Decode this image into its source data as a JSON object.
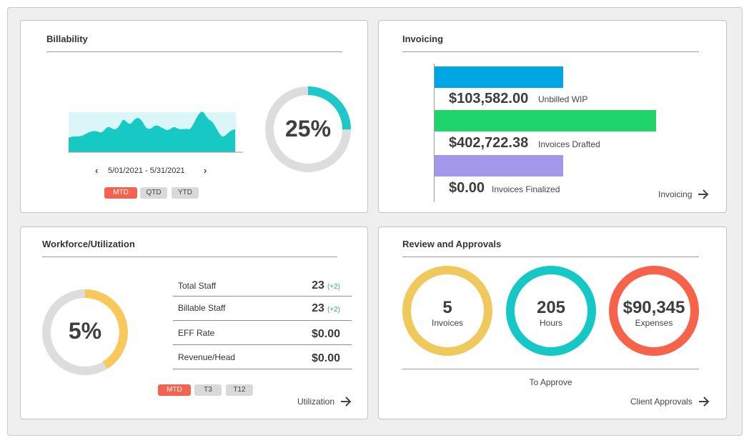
{
  "billability": {
    "title": "Billability",
    "percent": "25%",
    "percent_value": 25,
    "date_range": "5/01/2021 - 5/31/2021",
    "prev_icon": "chevron-left-icon",
    "next_icon": "chevron-right-icon",
    "periods": [
      "MTD",
      "QTD",
      "YTD"
    ],
    "active_period": "MTD",
    "ring_color": "#1ec8c8",
    "ring_track_color": "#dddddd",
    "area_fill": "#17c9c4",
    "area_bg": "#daf6f8"
  },
  "invoicing": {
    "title": "Invoicing",
    "items": [
      {
        "amount": "$103,582.00",
        "label": "Unbilled WIP",
        "value": 103582.0,
        "color": "#00a6e4"
      },
      {
        "amount": "$402,722.38",
        "label": "Invoices Drafted",
        "value": 402722.38,
        "color": "#1fd46b"
      },
      {
        "amount": "$0.00",
        "label": "Invoices Finalized",
        "value": 0.0,
        "color": "#a498ed"
      }
    ],
    "link_label": "Invoicing",
    "link_icon": "arrow-right-icon"
  },
  "workforce": {
    "title": "Workforce/Utilization",
    "percent": "5%",
    "ring_color": "#f8c95a",
    "ring_track_color": "#dddddd",
    "stats": [
      {
        "label": "Total Staff",
        "value": "23",
        "delta": "(+2)"
      },
      {
        "label": "Billable Staff",
        "value": "23",
        "delta": "(+2)"
      },
      {
        "label": "EFF Rate",
        "value": "$0.00",
        "delta": ""
      },
      {
        "label": "Revenue/Head",
        "value": "$0.00",
        "delta": ""
      }
    ],
    "periods": [
      "MTD",
      "T3",
      "T12"
    ],
    "active_period": "MTD",
    "link_label": "Utilization",
    "link_icon": "arrow-right-icon"
  },
  "approvals": {
    "title": "Review and Approvals",
    "rings": [
      {
        "value": "5",
        "label": "Invoices",
        "color": "#f0c95c"
      },
      {
        "value": "205",
        "label": "Hours",
        "color": "#15c8c7"
      },
      {
        "value": "$90,345",
        "label": "Expenses",
        "color": "#f6624a"
      }
    ],
    "caption": "To Approve",
    "link_label": "Client Approvals",
    "link_icon": "arrow-right-icon"
  }
}
